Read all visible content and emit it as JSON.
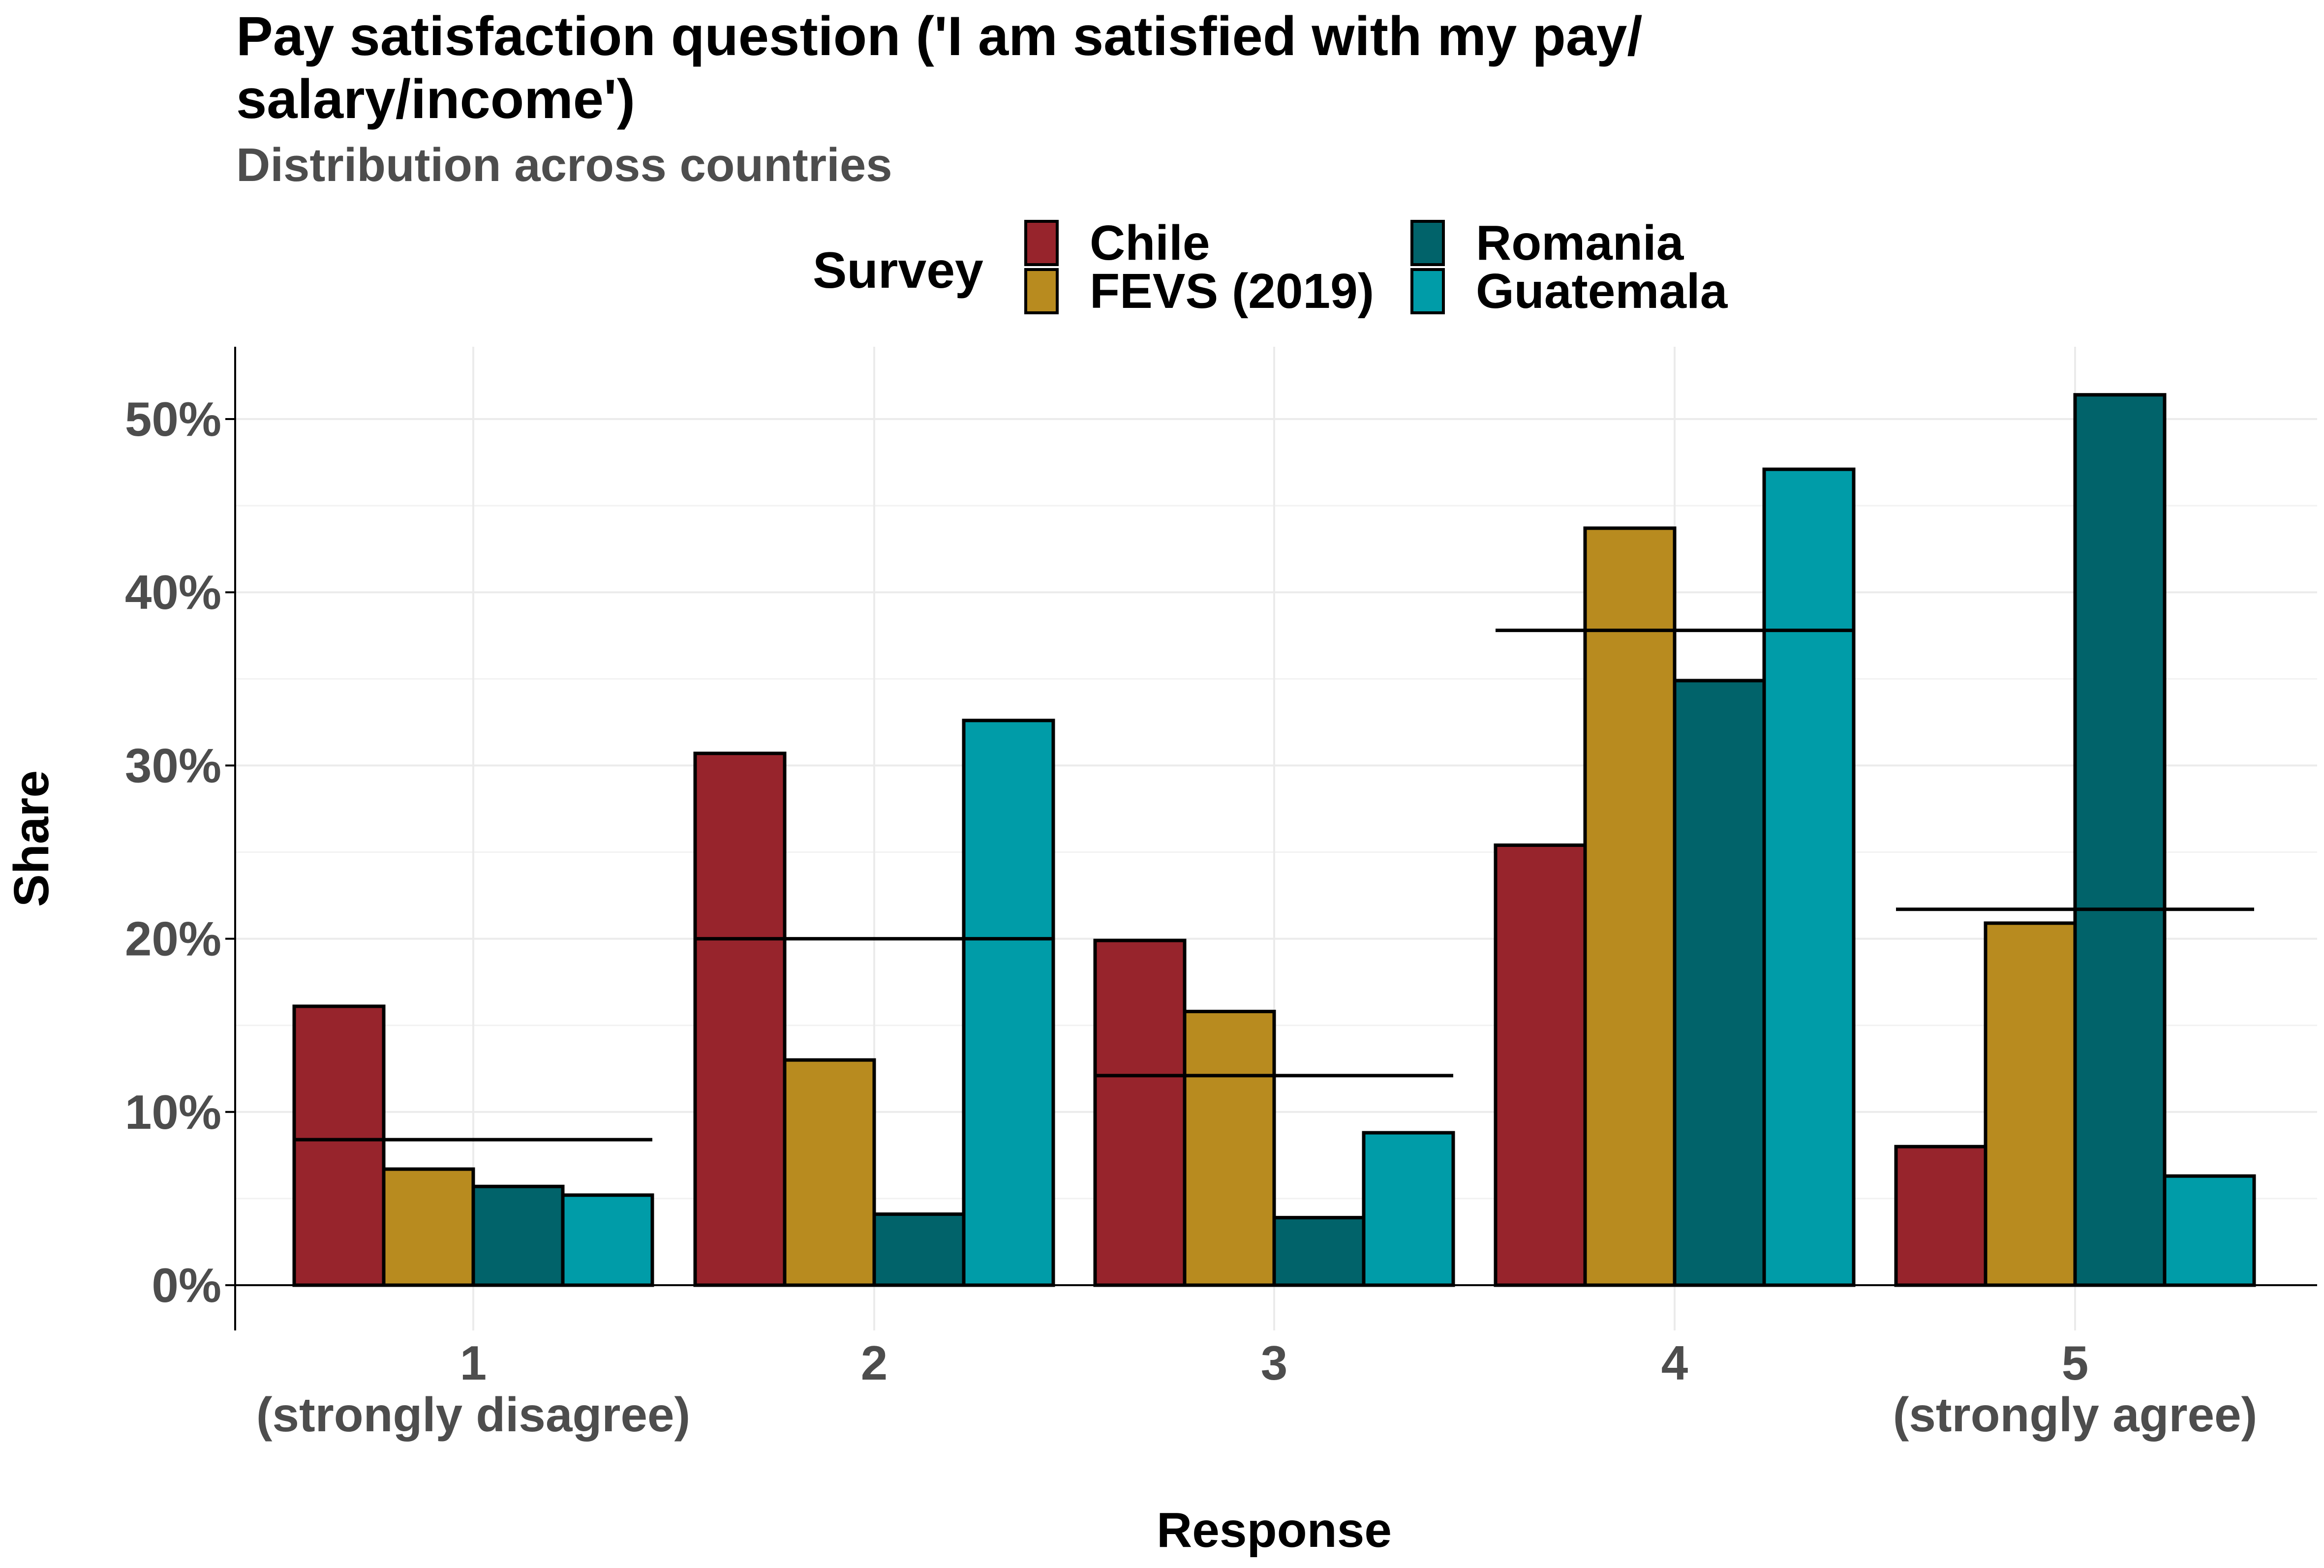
{
  "chart_data": {
    "type": "bar",
    "title_lines": [
      "Pay satisfaction question ('I am satisfied with my pay/",
      "salary/income')"
    ],
    "subtitle": "Distribution across countries",
    "xlabel": "Response",
    "ylabel": "Share",
    "ylim": [
      -0.027,
      0.54
    ],
    "yticks": [
      0,
      0.1,
      0.2,
      0.3,
      0.4,
      0.5
    ],
    "ytick_labels": [
      "0%",
      "10%",
      "20%",
      "30%",
      "40%",
      "50%"
    ],
    "categories": [
      [
        "1",
        "(strongly disagree)"
      ],
      [
        "2"
      ],
      [
        "3"
      ],
      [
        "4"
      ],
      [
        "5",
        "(strongly agree)"
      ]
    ],
    "legend": {
      "title": "Survey",
      "position": "top"
    },
    "series": [
      {
        "name": "Chile",
        "color": "#97242c",
        "values": [
          0.161,
          0.307,
          0.199,
          0.254,
          0.08
        ]
      },
      {
        "name": "FEVS (2019)",
        "color": "#b88b1f",
        "values": [
          0.067,
          0.13,
          0.158,
          0.437,
          0.209
        ]
      },
      {
        "name": "Romania",
        "color": "#01636a",
        "values": [
          0.057,
          0.041,
          0.039,
          0.349,
          0.514
        ]
      },
      {
        "name": "Guatemala",
        "color": "#009ca8",
        "values": [
          0.052,
          0.326,
          0.088,
          0.471,
          0.063
        ]
      }
    ],
    "average_lines": [
      0.084,
      0.2,
      0.121,
      0.378,
      0.217
    ],
    "grid": true
  }
}
